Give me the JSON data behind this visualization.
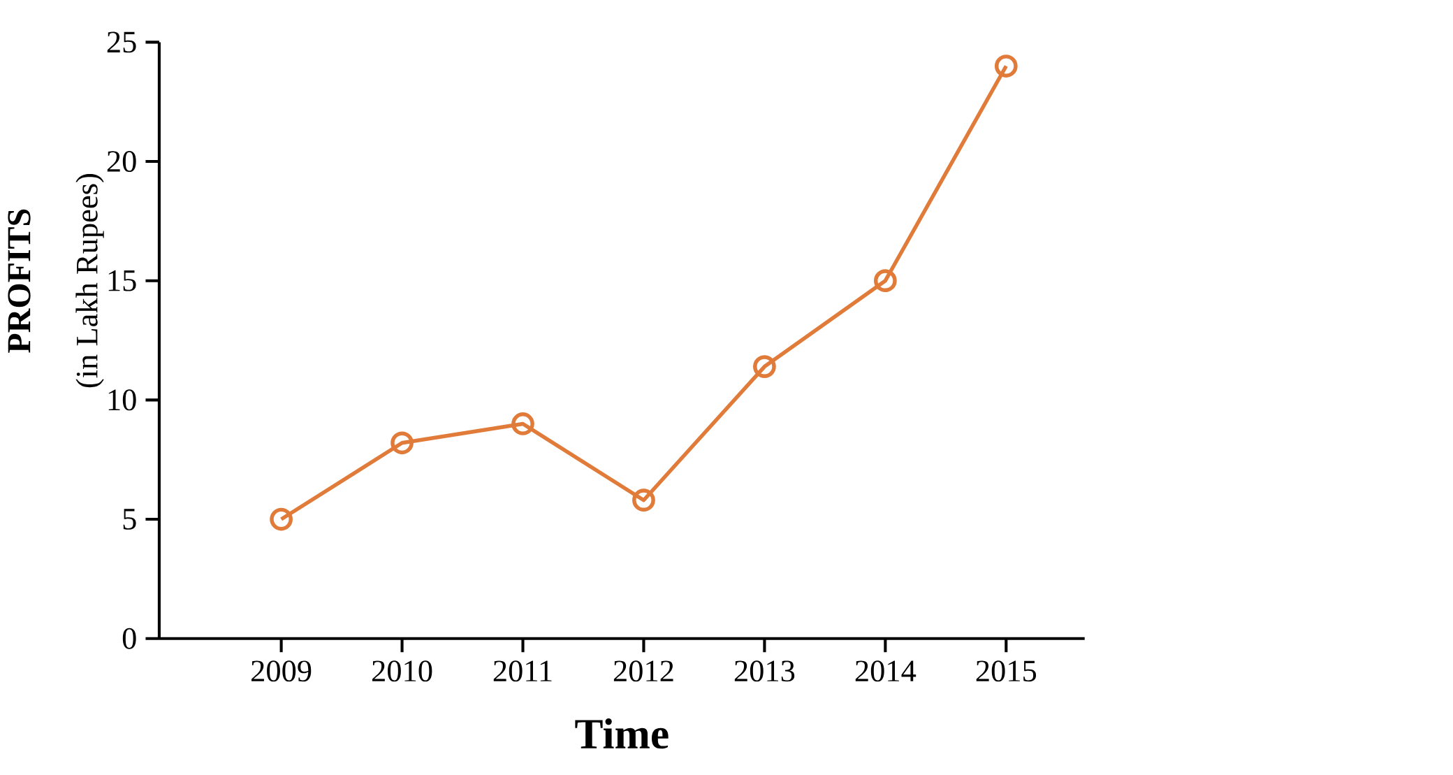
{
  "chart_data": {
    "type": "line",
    "xlabel": "Time",
    "ylabel": "PROFITS",
    "annotations": [
      "(in Lakh Rupees)"
    ],
    "categories": [
      "2009",
      "2010",
      "2011",
      "2012",
      "2013",
      "2014",
      "2015"
    ],
    "values": [
      5,
      8.2,
      9,
      5.8,
      11.4,
      15,
      24
    ],
    "color": "#e07b39",
    "marker": "circle",
    "line_style": "solid",
    "ylim": [
      0,
      25
    ],
    "yticks": [
      0,
      5,
      10,
      15,
      20,
      25
    ]
  }
}
